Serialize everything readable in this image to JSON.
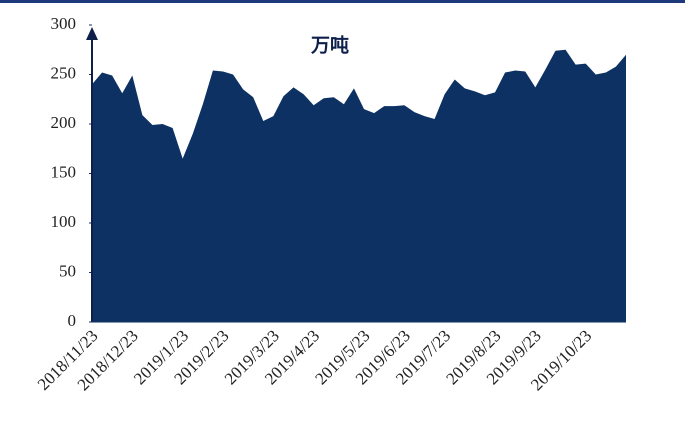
{
  "chart_data": {
    "type": "area",
    "annotation": "万吨",
    "categories": [
      "2018/11/23",
      null,
      null,
      null,
      "2018/12/23",
      null,
      null,
      null,
      null,
      "2019/1/23",
      null,
      null,
      null,
      "2019/2/23",
      null,
      null,
      null,
      null,
      "2019/3/23",
      null,
      null,
      null,
      "2019/4/23",
      null,
      null,
      null,
      null,
      "2019/5/23",
      null,
      null,
      null,
      "2019/6/23",
      null,
      null,
      null,
      "2019/7/23",
      null,
      null,
      null,
      null,
      "2019/8/23",
      null,
      null,
      null,
      "2019/9/23",
      null,
      null,
      null,
      null,
      "2019/10/23",
      null,
      null,
      null,
      null
    ],
    "values": [
      240,
      252,
      249,
      231,
      249,
      209,
      199,
      200,
      196,
      165,
      190,
      220,
      254,
      253,
      250,
      235,
      227,
      203,
      208,
      228,
      237,
      230,
      219,
      226,
      227,
      220,
      236,
      215,
      211,
      218,
      218,
      219,
      212,
      208,
      205,
      230,
      245,
      236,
      233,
      229,
      232,
      252,
      254,
      253,
      237,
      255,
      274,
      275,
      260,
      261,
      250,
      252,
      258,
      270
    ],
    "color": "#0d3162",
    "ylim": [
      0,
      300
    ],
    "yticks": [
      0,
      50,
      100,
      150,
      200,
      250,
      300
    ]
  }
}
